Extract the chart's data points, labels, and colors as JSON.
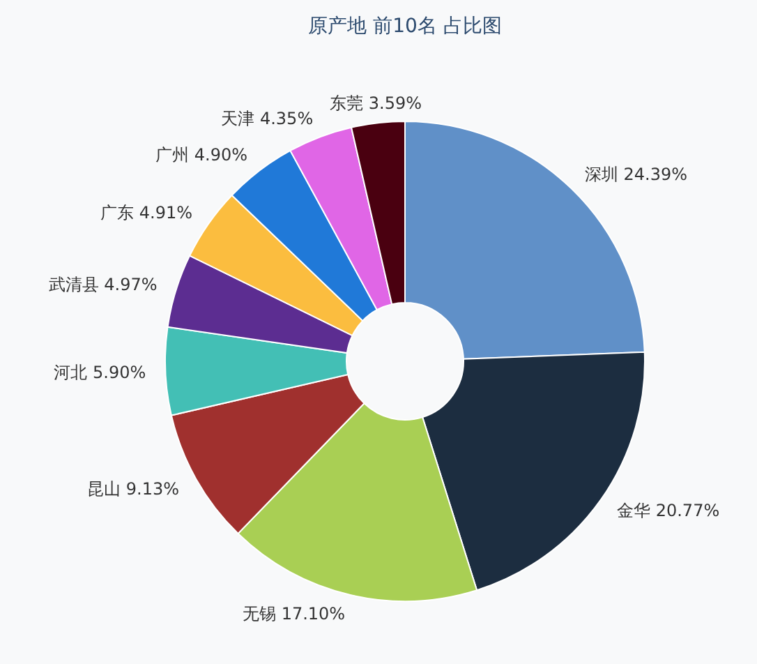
{
  "chart_data": {
    "type": "donut",
    "title": "原产地  前10名 占比图",
    "categories": [
      "深圳",
      "金华",
      "无锡",
      "昆山",
      "河北",
      "武清县",
      "广东",
      "广州",
      "天津",
      "东莞"
    ],
    "values": [
      24.39,
      20.77,
      17.1,
      9.13,
      5.9,
      4.97,
      4.91,
      4.9,
      4.35,
      3.59
    ],
    "value_labels": [
      "24.39%",
      "20.77%",
      "17.10%",
      "9.13%",
      "5.90%",
      "4.97%",
      "4.91%",
      "4.90%",
      "4.35%",
      "3.59%"
    ],
    "colors": [
      "#6090c8",
      "#1c2d40",
      "#a9cf54",
      "#a0302e",
      "#43bfb5",
      "#5c2d91",
      "#fbbd3f",
      "#2079d8",
      "#e066e6",
      "#4a0010"
    ],
    "legend": false
  }
}
